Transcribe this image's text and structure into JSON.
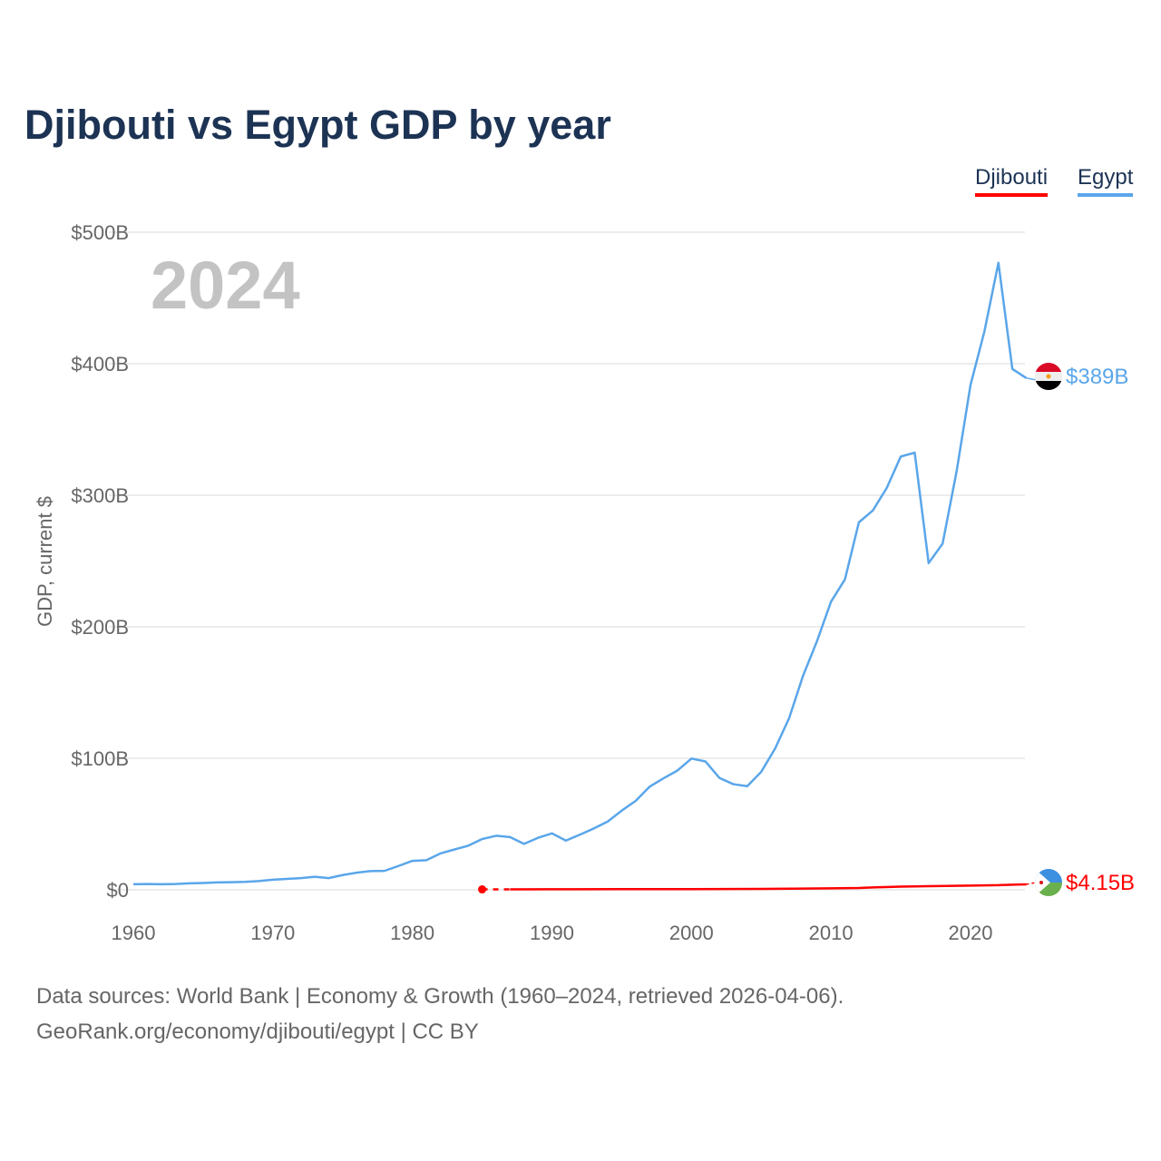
{
  "title": "Djibouti vs Egypt GDP by year",
  "year_watermark": "2024",
  "source_line1": "Data sources: World Bank | Economy & Growth (1960–2024, retrieved 2026-04-06).",
  "source_line2": "GeoRank.org/economy/djibouti/egypt | CC BY",
  "chart_data": {
    "type": "line",
    "title": "Djibouti vs Egypt GDP by year",
    "xlabel": "",
    "ylabel": "GDP, current $",
    "xlim": [
      1960,
      2024
    ],
    "ylim": [
      0,
      500
    ],
    "xticks": [
      1960,
      1970,
      1980,
      1990,
      2000,
      2010,
      2020
    ],
    "xtick_labels": [
      "1960",
      "1970",
      "1980",
      "1990",
      "2000",
      "2010",
      "2020"
    ],
    "yticks": [
      0,
      100,
      200,
      300,
      400,
      500
    ],
    "ytick_labels": [
      "$0",
      "$100B",
      "$200B",
      "$300B",
      "$400B",
      "$500B"
    ],
    "grid": true,
    "legend_placement": "top-right",
    "series": [
      {
        "name": "Djibouti",
        "color": "#ff0000",
        "end_label": "$4.15B",
        "flag": "djibouti-flag",
        "x": [
          1985,
          1987,
          1990,
          1995,
          2000,
          2005,
          2010,
          2012,
          2013,
          2015,
          2017,
          2020,
          2022,
          2023,
          2024
        ],
        "y": [
          0.34,
          0.37,
          0.45,
          0.5,
          0.55,
          0.71,
          1.13,
          1.35,
          1.85,
          2.42,
          2.75,
          3.18,
          3.5,
          3.9,
          4.15
        ],
        "gap_after_first": true
      },
      {
        "name": "Egypt",
        "color": "#5aa6ea",
        "end_label": "$389B",
        "flag": "egypt-flag",
        "x": [
          1960,
          1961,
          1962,
          1963,
          1964,
          1965,
          1966,
          1967,
          1968,
          1969,
          1970,
          1971,
          1972,
          1973,
          1974,
          1975,
          1976,
          1977,
          1978,
          1979,
          1980,
          1981,
          1982,
          1983,
          1984,
          1985,
          1986,
          1987,
          1988,
          1989,
          1990,
          1991,
          1992,
          1993,
          1994,
          1995,
          1996,
          1997,
          1998,
          1999,
          2000,
          2001,
          2002,
          2003,
          2004,
          2005,
          2006,
          2007,
          2008,
          2009,
          2010,
          2011,
          2012,
          2013,
          2014,
          2015,
          2016,
          2017,
          2018,
          2019,
          2020,
          2021,
          2022,
          2023,
          2024
        ],
        "y": [
          4.2,
          4.4,
          4.2,
          4.4,
          4.9,
          5.2,
          5.6,
          5.8,
          6.0,
          6.6,
          7.7,
          8.3,
          8.9,
          9.9,
          8.9,
          11.2,
          13.0,
          14.2,
          14.4,
          18.1,
          22.0,
          22.5,
          27.6,
          30.6,
          33.5,
          38.6,
          41.1,
          40.1,
          34.9,
          39.5,
          42.9,
          37.4,
          41.9,
          46.6,
          51.9,
          60.2,
          67.6,
          78.4,
          84.8,
          90.7,
          99.8,
          97.6,
          85.1,
          80.3,
          78.8,
          89.7,
          107.5,
          130.5,
          162.8,
          189.1,
          219.0,
          236.0,
          279.4,
          288.4,
          305.6,
          329.4,
          332.4,
          248.4,
          263.2,
          317.9,
          383.8,
          424.7,
          476.7,
          396.0,
          389.1
        ]
      }
    ]
  }
}
